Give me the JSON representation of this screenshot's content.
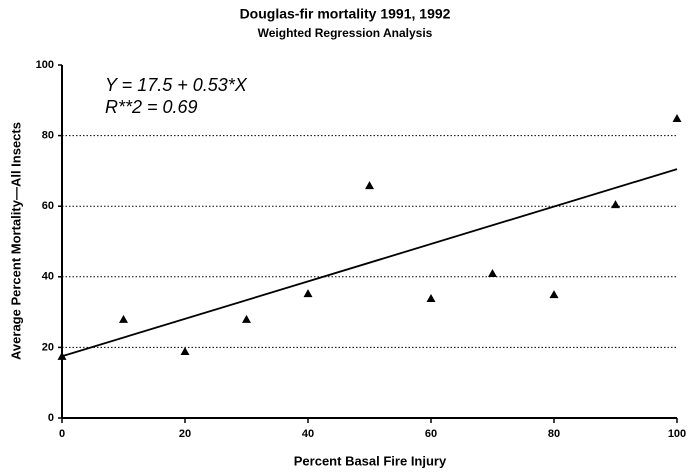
{
  "chart_data": {
    "type": "scatter",
    "title": "Douglas-fir mortality 1991, 1992",
    "subtitle": "Weighted Regression Analysis",
    "xlabel": "Percent Basal Fire Injury",
    "ylabel": "Average Percent Mortality—All Insects",
    "annotations": [
      "Y = 17.5 + 0.53*X",
      "R**2 = 0.69"
    ],
    "x": [
      0,
      10,
      20,
      30,
      40,
      50,
      60,
      70,
      80,
      90,
      100
    ],
    "values": [
      17.3,
      27.8,
      18.7,
      27.8,
      35.1,
      65.7,
      33.7,
      40.8,
      34.8,
      60.3,
      84.7
    ],
    "color": "#000000",
    "fit": {
      "x": [
        0,
        100
      ],
      "values": [
        17.5,
        70.5
      ]
    },
    "xlim": [
      0,
      100
    ],
    "xticks": [
      0,
      20,
      40,
      60,
      80,
      100
    ],
    "ylim": [
      0,
      100
    ],
    "yticks": [
      0,
      20,
      40,
      60,
      80,
      100
    ],
    "grid": true
  }
}
